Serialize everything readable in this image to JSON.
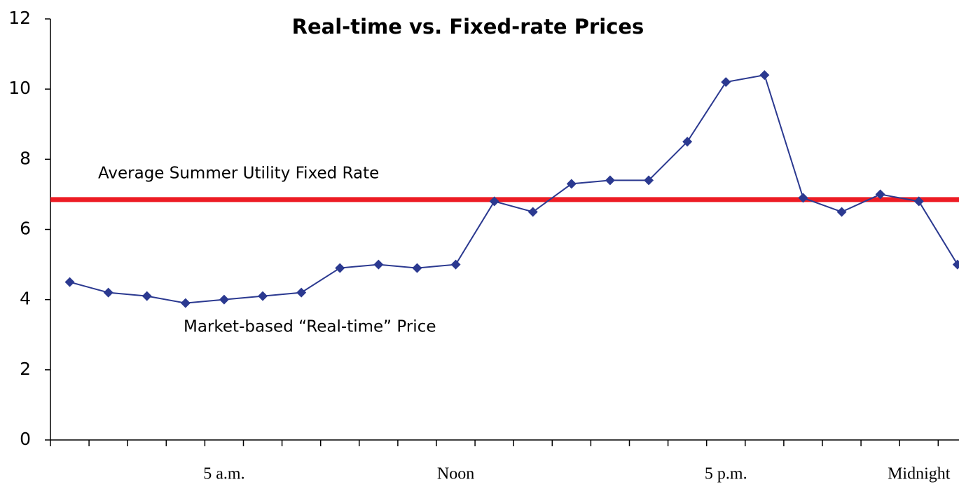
{
  "chart_data": {
    "type": "line",
    "title": "Real-time vs. Fixed-rate Prices",
    "categories": [
      null,
      null,
      null,
      null,
      "5 a.m.",
      null,
      null,
      null,
      null,
      null,
      "Noon",
      null,
      null,
      null,
      null,
      null,
      null,
      "5 p.m.",
      null,
      null,
      null,
      null,
      "Midnight",
      null
    ],
    "series": [
      {
        "name": "Market-based “Real-time” Price",
        "color": "#2b3990",
        "values": [
          4.5,
          4.2,
          4.1,
          3.9,
          4.0,
          4.1,
          4.2,
          4.9,
          5.0,
          4.9,
          5.0,
          6.8,
          6.5,
          7.3,
          7.4,
          7.4,
          8.5,
          10.2,
          10.4,
          6.9,
          6.5,
          7.0,
          6.8,
          5.0
        ]
      }
    ],
    "reference_line": {
      "name": "Average Summer Utility Fixed Rate",
      "value": 6.85,
      "color": "#ed1c24"
    },
    "ylim": [
      0,
      12
    ],
    "yticks": [
      0,
      2,
      4,
      6,
      8,
      10,
      12
    ],
    "grid": false
  }
}
